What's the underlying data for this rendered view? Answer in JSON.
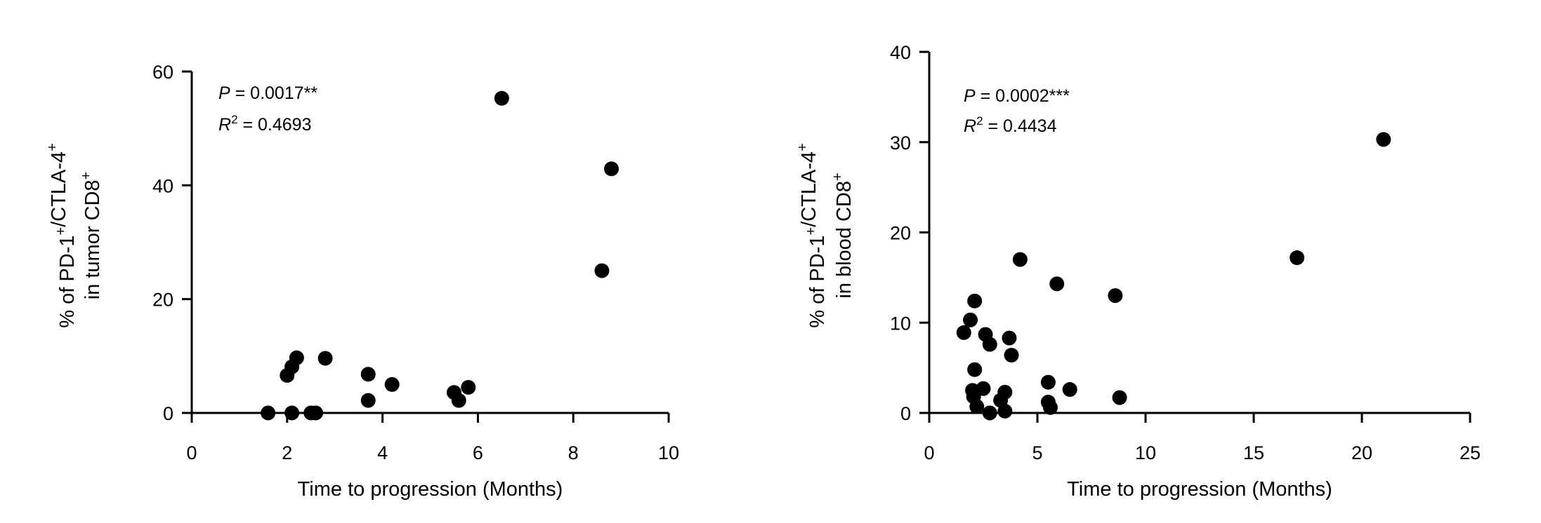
{
  "chart_data": [
    {
      "type": "scatter",
      "xlabel": "Time to progression (Months)",
      "ylabel_lines": [
        [
          {
            "t": "% of PD-1"
          },
          {
            "sup": "+"
          },
          {
            "t": "/CTLA-4"
          },
          {
            "sup": "+"
          }
        ],
        [
          {
            "t": "in tumor CD8"
          },
          {
            "sup": "+"
          }
        ]
      ],
      "annotation": {
        "p_symbol": "P",
        "p_text": " = 0.0017**",
        "r_symbol": "R",
        "r_sup": "2",
        "r_text": " = 0.4693"
      },
      "xlim": [
        0,
        10
      ],
      "ylim": [
        0,
        60
      ],
      "xticks": [
        0,
        2,
        4,
        6,
        8,
        10
      ],
      "yticks": [
        0,
        20,
        40,
        60
      ],
      "grid": false,
      "marker_color": "#000000",
      "points": [
        [
          1.6,
          0
        ],
        [
          2.0,
          6.6
        ],
        [
          2.1,
          8.1
        ],
        [
          2.2,
          9.7
        ],
        [
          2.1,
          0
        ],
        [
          2.5,
          0
        ],
        [
          2.6,
          0
        ],
        [
          2.8,
          9.6
        ],
        [
          3.7,
          6.8
        ],
        [
          3.7,
          2.2
        ],
        [
          4.2,
          5.0
        ],
        [
          5.5,
          3.6
        ],
        [
          5.6,
          2.2
        ],
        [
          5.8,
          4.5
        ],
        [
          6.5,
          55.3
        ],
        [
          8.8,
          42.9
        ],
        [
          8.6,
          25.0
        ]
      ]
    },
    {
      "type": "scatter",
      "xlabel": "Time to progression (Months)",
      "ylabel_lines": [
        [
          {
            "t": "% of PD-1"
          },
          {
            "sup": "+"
          },
          {
            "t": "/CTLA-4"
          },
          {
            "sup": "+"
          }
        ],
        [
          {
            "t": "in blood CD8"
          },
          {
            "sup": "+"
          }
        ]
      ],
      "annotation": {
        "p_symbol": "P",
        "p_text": " = 0.0002***",
        "r_symbol": "R",
        "r_sup": "2",
        "r_text": " = 0.4434"
      },
      "xlim": [
        0,
        25
      ],
      "ylim": [
        0,
        40
      ],
      "xticks": [
        0,
        5,
        10,
        15,
        20,
        25
      ],
      "yticks": [
        0,
        10,
        20,
        30,
        40
      ],
      "grid": false,
      "marker_color": "#000000",
      "points": [
        [
          1.6,
          8.9
        ],
        [
          1.9,
          10.3
        ],
        [
          2.1,
          12.4
        ],
        [
          2.1,
          4.8
        ],
        [
          2.0,
          2.5
        ],
        [
          2.05,
          1.8
        ],
        [
          2.2,
          0.7
        ],
        [
          2.5,
          2.7
        ],
        [
          2.6,
          8.7
        ],
        [
          2.8,
          7.6
        ],
        [
          2.8,
          0
        ],
        [
          3.3,
          1.4
        ],
        [
          3.5,
          2.3
        ],
        [
          3.5,
          0.2
        ],
        [
          3.7,
          8.3
        ],
        [
          3.8,
          6.4
        ],
        [
          4.2,
          17.0
        ],
        [
          5.5,
          3.4
        ],
        [
          5.5,
          1.2
        ],
        [
          5.6,
          0.6
        ],
        [
          5.9,
          14.3
        ],
        [
          6.5,
          2.6
        ],
        [
          8.6,
          13.0
        ],
        [
          8.8,
          1.7
        ],
        [
          17.0,
          17.2
        ],
        [
          21.0,
          30.3
        ]
      ]
    }
  ]
}
